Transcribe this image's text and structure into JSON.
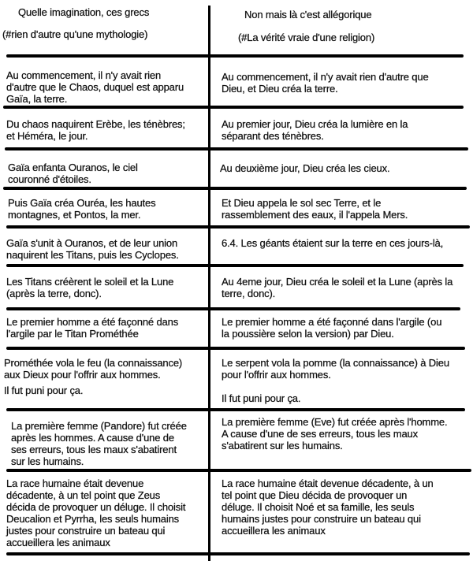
{
  "header": {
    "left_title": "Quelle imagination, ces grecs",
    "left_subtitle": "(#rien d'autre qu'une mythologie)",
    "right_title": "Non mais là c'est allégorique",
    "right_subtitle": "(#La vérité vraie d'une religion)"
  },
  "rows": [
    {
      "left": "Au commencement, il n'y avait rien\nd'autre que le Chaos, duquel est apparu\nGaïa, la terre.",
      "right": "Au commencement, il n'y avait rien d'autre que\nDieu, et Dieu créa la terre."
    },
    {
      "left": "Du chaos naquirent Erèbe, les ténèbres;\net Héméra, le jour.",
      "right": "Au premier jour, Dieu créa la lumière en la\nséparant des ténèbres."
    },
    {
      "left": "Gaïa enfanta Ouranos, le ciel\ncouronné d'étoiles.",
      "right": "Au deuxième jour, Dieu créa les cieux."
    },
    {
      "left": "Puis Gaïa créa Ouréa, les hautes\nmontagnes, et Pontos, la mer.",
      "right": "Et Dieu appela le sol sec Terre, et le\nrassemblement des eaux, il l'appela Mers."
    },
    {
      "left": "Gaïa s'unit à Ouranos, et de leur union\nnaquirent les Titans, puis les Cyclopes.",
      "right": "6.4. Les géants étaient sur la terre en ces jours-là,"
    },
    {
      "left": "Les Titans créèrent le soleil et la Lune\n(après la terre, donc).",
      "right": "Au 4eme jour, Dieu créa le soleil et la Lune (après la\nterre, donc)."
    },
    {
      "left": "Le premier homme a été façonné dans\nl'argile par le Titan Prométhée",
      "right": "Le premier homme a été façonné dans l'argile (ou\nla poussière selon la version) par Dieu."
    },
    {
      "left": "Prométhée vola le feu (la connaissance)\naux Dieux pour l'offrir aux hommes.",
      "left_extra": "Il fut puni pour ça.",
      "right": "Le serpent vola la pomme (la connaissance) à Dieu\npour l'offrir aux hommes.",
      "right_extra": "Il fut puni pour ça."
    },
    {
      "left": "La première femme (Pandore) fut créée\naprès les hommes. A cause d'une de\nses erreurs, tous les maux s'abatirent\nsur les humains.",
      "right": "La première femme (Eve) fut créée après l'homme.\nA cause d'une de ses erreurs, tous les maux\ns'abatirent sur les humains."
    },
    {
      "left": "La race humaine était devenue\ndécadente, à un tel point que Zeus\ndécida de provoquer un déluge. Il choisit\nDeucalion et Pyrrha, les seuls humains\njustes pour construire un bateau qui\naccueillera les animaux",
      "right": "La race humaine était devenue décadente, à un\ntel point que Dieu décida de provoquer un\ndéluge. Il choisit Noé et sa famille, les seuls\nhumains justes pour construire un bateau qui\naccueillera les animaux"
    }
  ]
}
